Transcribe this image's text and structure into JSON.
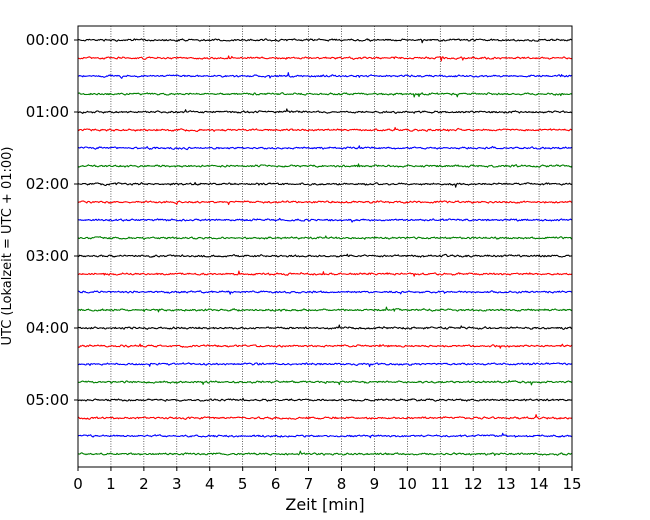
{
  "chart_data": {
    "type": "line",
    "title": "",
    "xlabel": "Zeit  [min]",
    "ylabel": "UTC (Lokalzeit = UTC + 01:00)",
    "xlim": [
      0,
      15
    ],
    "x_ticks": [
      0,
      1,
      2,
      3,
      4,
      5,
      6,
      7,
      8,
      9,
      10,
      11,
      12,
      13,
      14,
      15
    ],
    "y_tick_labels": [
      "00:00",
      "01:00",
      "02:00",
      "03:00",
      "04:00",
      "05:00"
    ],
    "row_minutes": 15,
    "rows_per_hour": 4,
    "total_rows": 24,
    "trace_colors": [
      "#000000",
      "#ff0000",
      "#0000ff",
      "#008000"
    ],
    "grid": "vertical dotted lines at each minute",
    "legend": "none"
  }
}
